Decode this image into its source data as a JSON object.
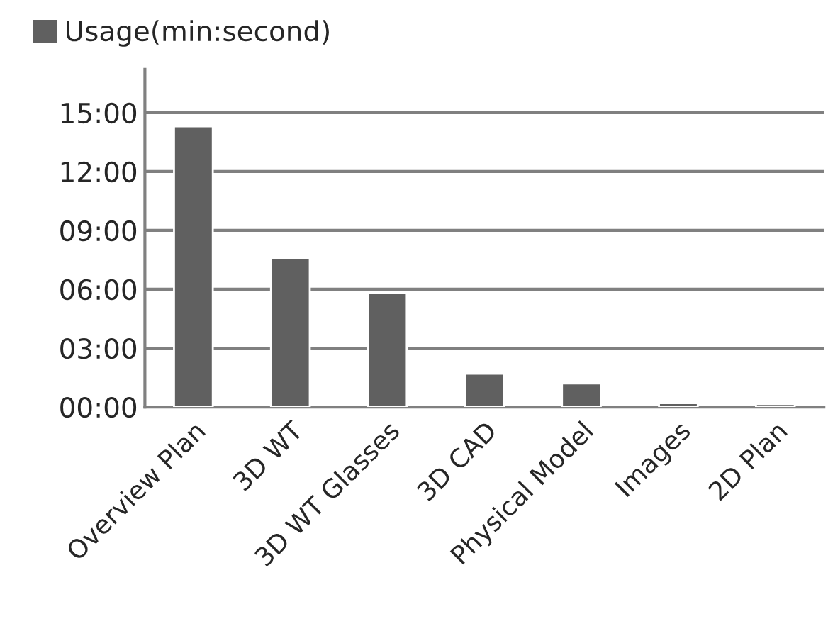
{
  "chart_data": {
    "type": "bar",
    "categories": [
      "Overview Plan",
      "3D WT",
      "3D WT Glasses",
      "3D CAD",
      "Physical Model",
      "Images",
      "2D Plan"
    ],
    "series": [
      {
        "name": "Usage(min:second)",
        "color": "#606060",
        "values": [
          14.3,
          7.6,
          5.8,
          1.7,
          1.2,
          0.2,
          0.15
        ]
      }
    ],
    "ylim": [
      0,
      17.2
    ],
    "yticks": [
      {
        "value": 0,
        "label": "00:00"
      },
      {
        "value": 3,
        "label": "03:00"
      },
      {
        "value": 6,
        "label": "06:00"
      },
      {
        "value": 9,
        "label": "09:00"
      },
      {
        "value": 12,
        "label": "12:00"
      },
      {
        "value": 15,
        "label": "15:00"
      }
    ],
    "grid": "y",
    "legend": "top left"
  }
}
